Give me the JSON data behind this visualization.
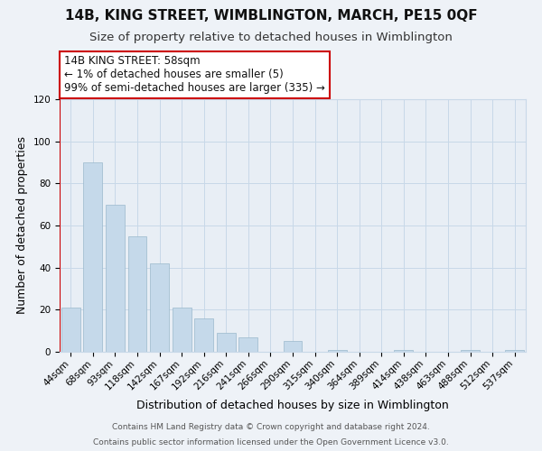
{
  "title": "14B, KING STREET, WIMBLINGTON, MARCH, PE15 0QF",
  "subtitle": "Size of property relative to detached houses in Wimblington",
  "xlabel": "Distribution of detached houses by size in Wimblington",
  "ylabel": "Number of detached properties",
  "bar_labels": [
    "44sqm",
    "68sqm",
    "93sqm",
    "118sqm",
    "142sqm",
    "167sqm",
    "192sqm",
    "216sqm",
    "241sqm",
    "266sqm",
    "290sqm",
    "315sqm",
    "340sqm",
    "364sqm",
    "389sqm",
    "414sqm",
    "438sqm",
    "463sqm",
    "488sqm",
    "512sqm",
    "537sqm"
  ],
  "bar_values": [
    21,
    90,
    70,
    55,
    42,
    21,
    16,
    9,
    7,
    0,
    5,
    0,
    1,
    0,
    0,
    1,
    0,
    0,
    1,
    0,
    1
  ],
  "bar_color": "#c5d9ea",
  "vline_color": "#cc0000",
  "ylim": [
    0,
    120
  ],
  "yticks": [
    0,
    20,
    40,
    60,
    80,
    100,
    120
  ],
  "annotation_title": "14B KING STREET: 58sqm",
  "annotation_line1": "← 1% of detached houses are smaller (5)",
  "annotation_line2": "99% of semi-detached houses are larger (335) →",
  "footer1": "Contains HM Land Registry data © Crown copyright and database right 2024.",
  "footer2": "Contains public sector information licensed under the Open Government Licence v3.0.",
  "bg_color": "#eef2f7",
  "plot_bg_color": "#e8eef5",
  "grid_color": "#c8d8e8",
  "title_fontsize": 11,
  "subtitle_fontsize": 9.5,
  "axis_label_fontsize": 9,
  "tick_fontsize": 7.5,
  "annotation_fontsize": 8.5,
  "footer_fontsize": 6.5
}
